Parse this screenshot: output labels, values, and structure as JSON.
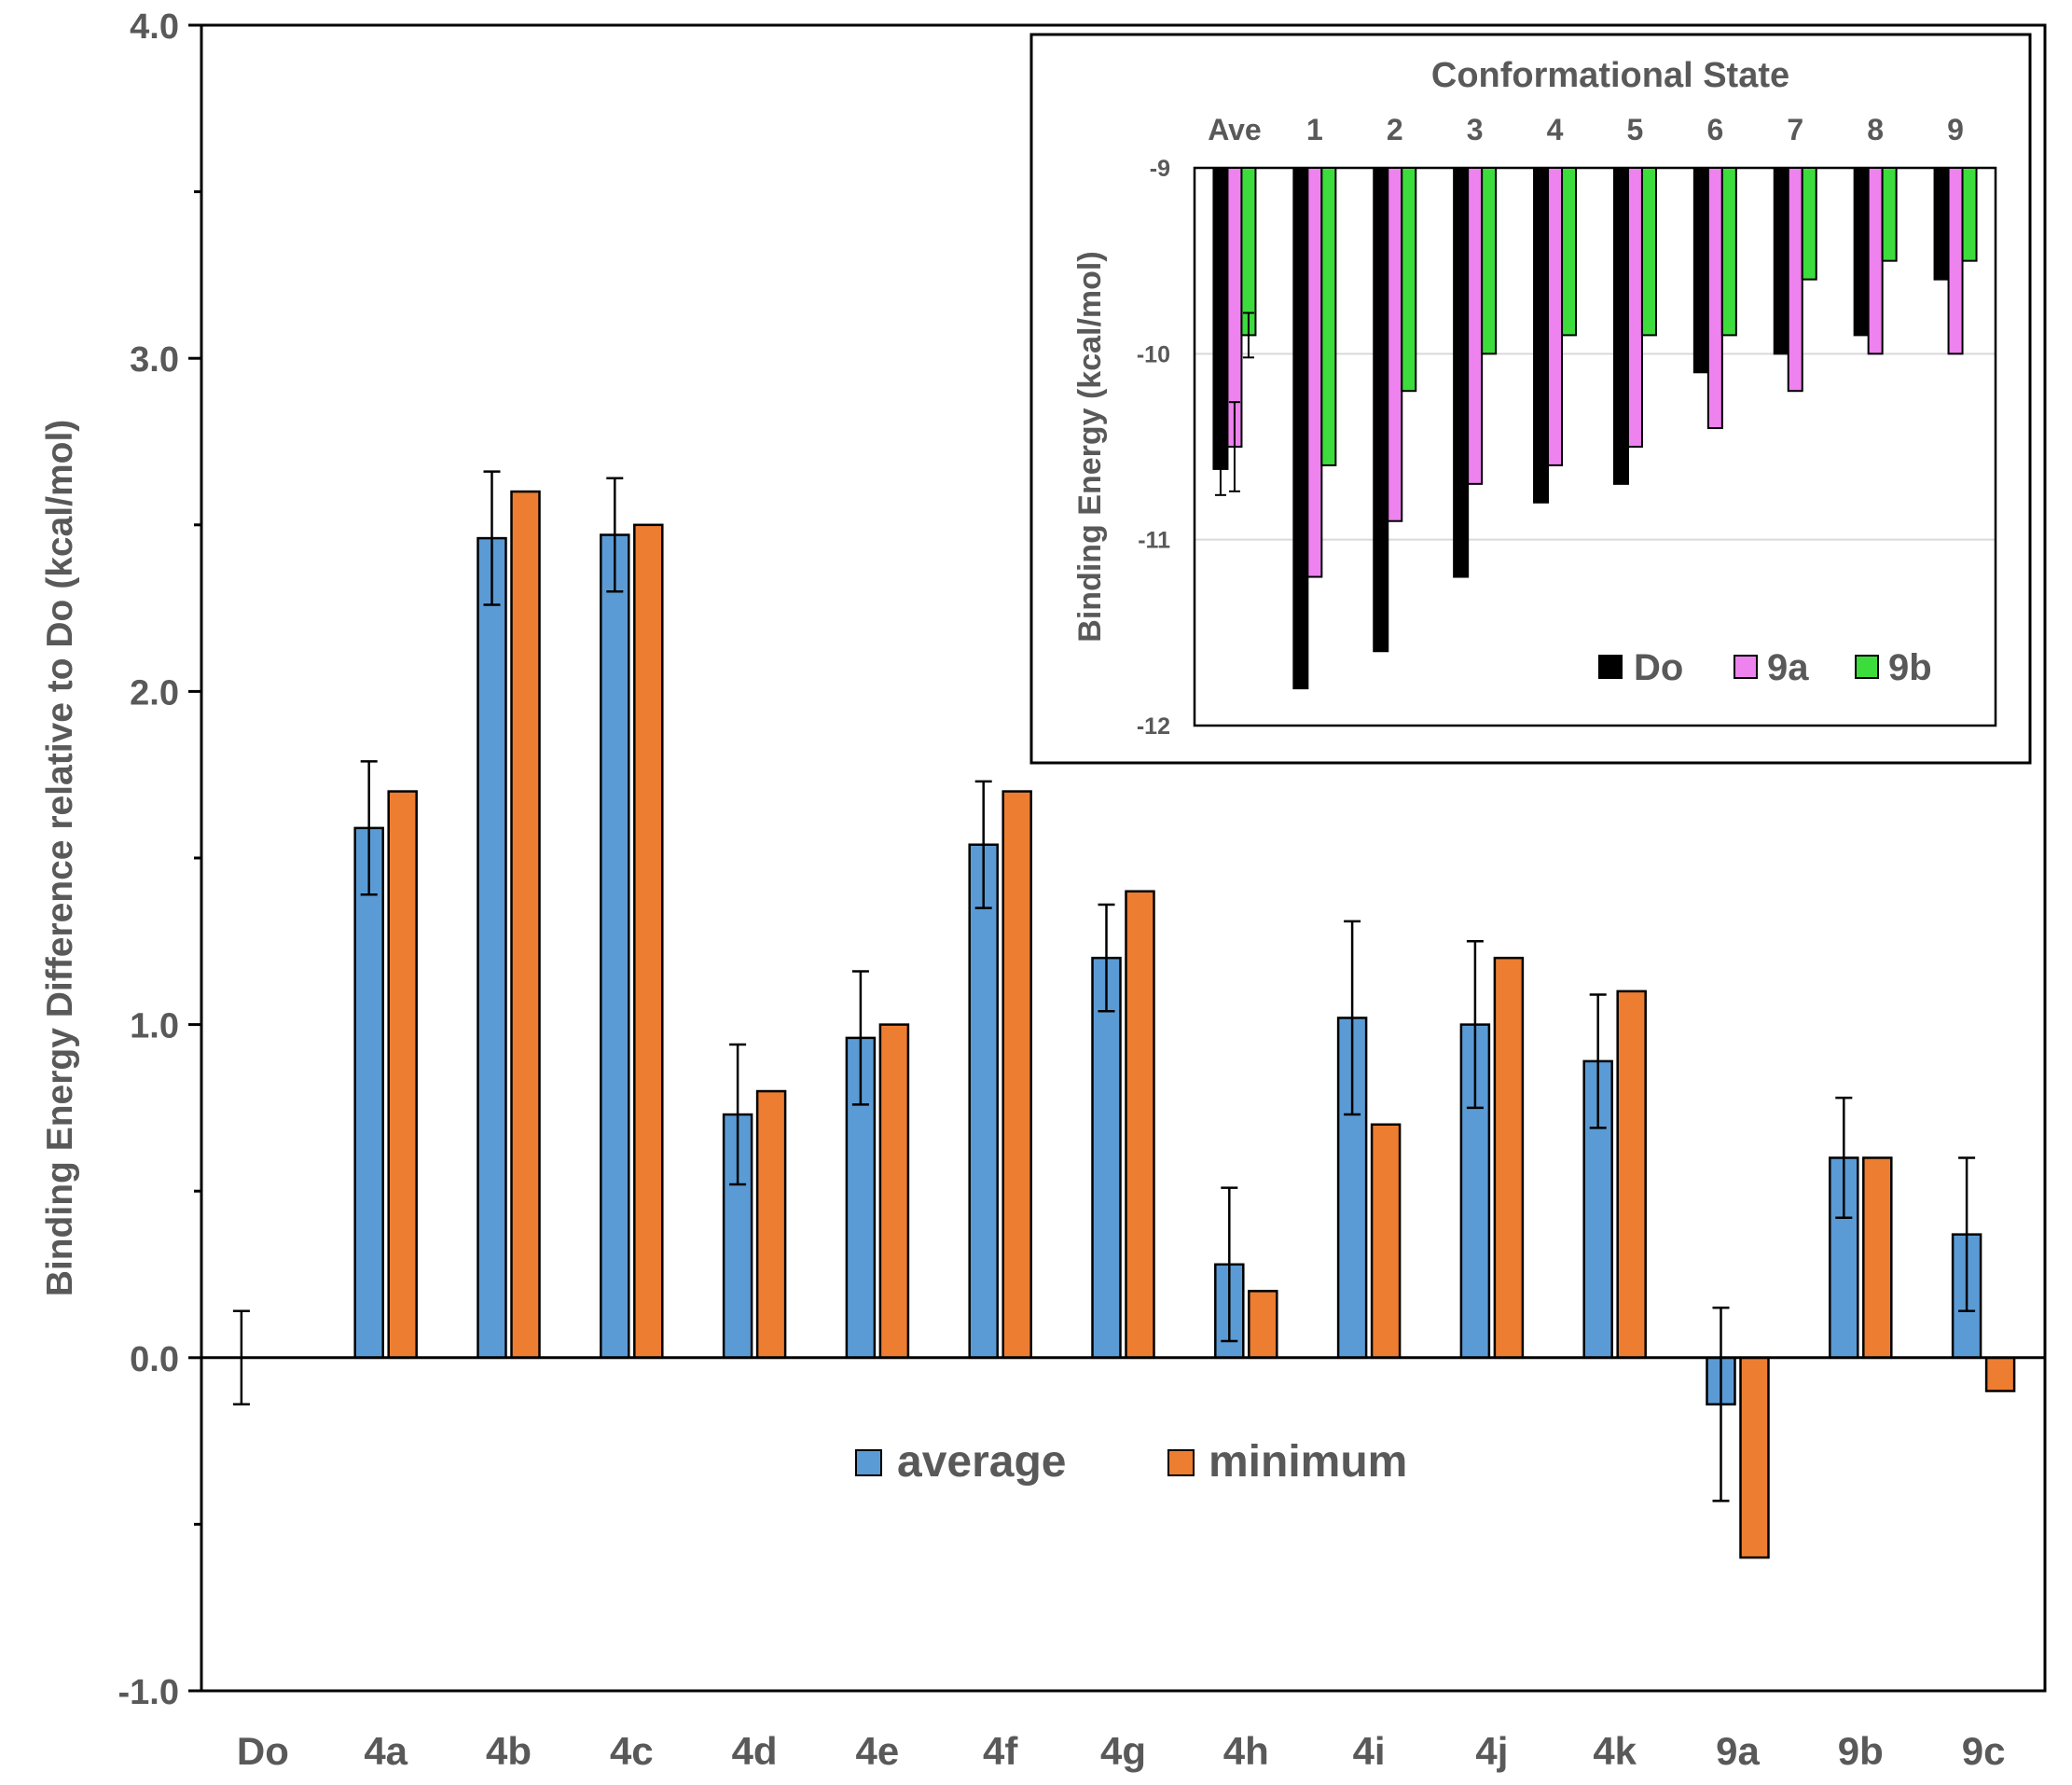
{
  "colors": {
    "average": "#5b9bd5",
    "minimum": "#ed7d31",
    "do": "#000000",
    "s9a": "#ee82ee",
    "s9b": "#3ddc3d",
    "axis": "#000000",
    "text": "#595959",
    "grid": "#d9d9d9"
  },
  "chart_data": [
    {
      "type": "bar",
      "ylabel": "Binding Energy Difference relative to Do (kcal/mol)",
      "xlabel": "",
      "ylim": [
        -1.0,
        4.0
      ],
      "yticks": [
        "-1.0",
        "0.0",
        "1.0",
        "2.0",
        "3.0",
        "4.0"
      ],
      "categories": [
        "Do",
        "4a",
        "4b",
        "4c",
        "4d",
        "4e",
        "4f",
        "4g",
        "4h",
        "4i",
        "4j",
        "4k",
        "9a",
        "9b",
        "9c"
      ],
      "series": [
        {
          "name": "average",
          "values": [
            0.0,
            1.59,
            2.46,
            2.47,
            0.73,
            0.96,
            1.54,
            1.2,
            0.28,
            1.02,
            1.0,
            0.89,
            -0.14,
            0.6,
            0.37
          ],
          "errors": [
            0.14,
            0.2,
            0.2,
            0.17,
            0.21,
            0.2,
            0.19,
            0.16,
            0.23,
            0.29,
            0.25,
            0.2,
            0.29,
            0.18,
            0.23
          ]
        },
        {
          "name": "minimum",
          "values": [
            0.0,
            1.7,
            2.6,
            2.5,
            0.8,
            1.0,
            1.7,
            1.4,
            0.2,
            0.7,
            1.2,
            1.1,
            -0.6,
            0.6,
            -0.1
          ]
        }
      ],
      "legend_position": "bottom-center"
    },
    {
      "type": "bar",
      "title": "Conformational State",
      "ylabel": "Binding Energy (kcal/mol)",
      "ylim": [
        -12,
        -9
      ],
      "yticks": [
        "-9",
        "-10",
        "-11",
        "-12"
      ],
      "categories": [
        "Ave",
        "1",
        "2",
        "3",
        "4",
        "5",
        "6",
        "7",
        "8",
        "9"
      ],
      "series": [
        {
          "name": "Do",
          "values": [
            -10.62,
            -11.8,
            -11.6,
            -11.2,
            -10.8,
            -10.7,
            -10.1,
            -10.0,
            -9.9,
            -9.6
          ],
          "errors": [
            0.14,
            0,
            0,
            0,
            0,
            0,
            0,
            0,
            0,
            0
          ]
        },
        {
          "name": "9a",
          "values": [
            -10.5,
            -11.2,
            -10.9,
            -10.7,
            -10.6,
            -10.5,
            -10.4,
            -10.2,
            -10.0,
            -10.0
          ],
          "errors": [
            0.24,
            0,
            0,
            0,
            0,
            0,
            0,
            0,
            0,
            0
          ]
        },
        {
          "name": "9b",
          "values": [
            -9.9,
            -10.6,
            -10.2,
            -10.0,
            -9.9,
            -9.9,
            -9.9,
            -9.6,
            -9.5,
            -9.5
          ],
          "errors": [
            0.12,
            0,
            0,
            0,
            0,
            0,
            0,
            0,
            0,
            0
          ]
        }
      ],
      "grid": true,
      "legend_position": "bottom-right"
    }
  ]
}
